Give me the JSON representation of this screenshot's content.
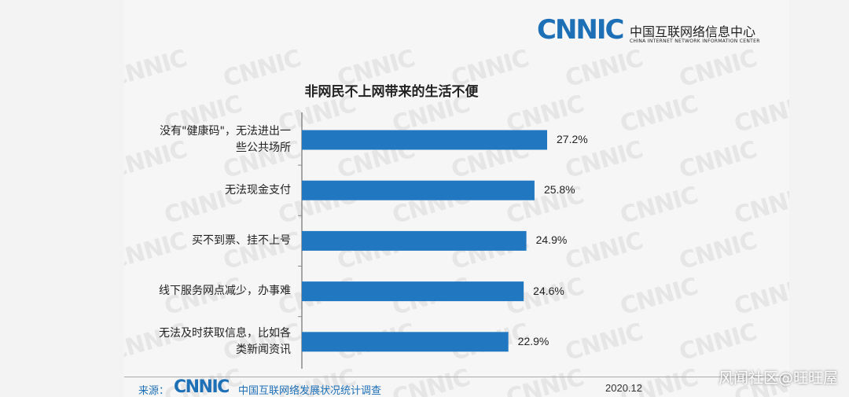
{
  "header": {
    "logo_text": "CNNIC",
    "org_name_cn": "中国互联网络信息中心",
    "org_name_en": "CHINA INTERNET NETWORK INFORMATION CENTER"
  },
  "chart_data": {
    "type": "bar",
    "orientation": "horizontal",
    "title": "非网民不上网带来的生活不便",
    "categories": [
      [
        "没有\"健康码\"，无法进出一",
        "些公共场所"
      ],
      [
        "无法现金支付"
      ],
      [
        "买不到票、挂不上号"
      ],
      [
        "线下服务网点减少，办事难"
      ],
      [
        "无法及时获取信息，比如各",
        "类新闻资讯"
      ]
    ],
    "values": [
      27.2,
      25.8,
      24.9,
      24.6,
      22.9
    ],
    "value_labels": [
      "27.2%",
      "25.8%",
      "24.9%",
      "24.6%",
      "22.9%"
    ],
    "bar_color": "#2278c0",
    "xlim": [
      0,
      30
    ],
    "grid": false,
    "legend": "none"
  },
  "footer": {
    "source_label": "来源：",
    "logo_text": "CNNIC",
    "survey_name": "中国互联网络发展状况统计调查",
    "date": "2020.12"
  },
  "watermark": {
    "text": "风闻社区@旺旺屋",
    "bg_mark": "CNNIC"
  }
}
